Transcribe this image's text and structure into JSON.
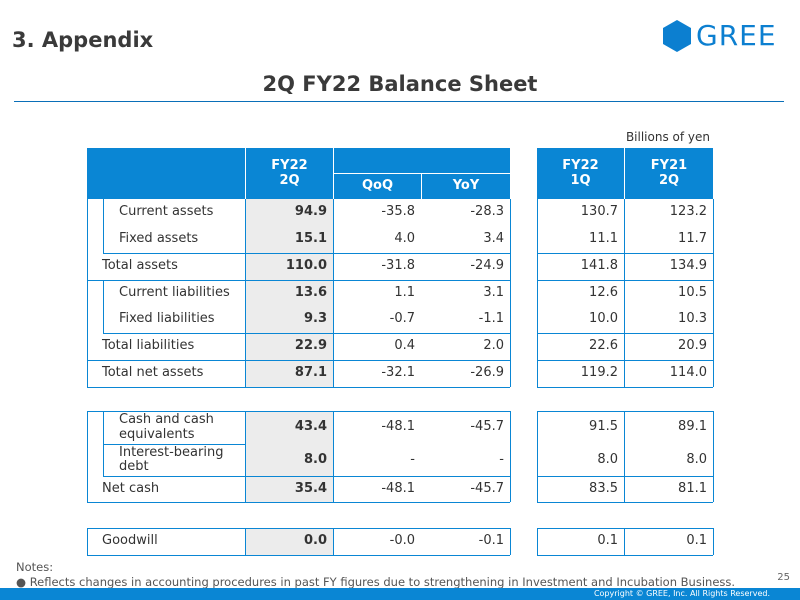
{
  "section_title": "3. Appendix",
  "logo_text": "GREE",
  "slide_title": "2Q FY22 Balance Sheet",
  "units": "Billions of yen",
  "headers": {
    "fy22_2q": "FY22\n2Q",
    "qoq": "QoQ",
    "yoy": "YoY",
    "fy22_1q": "FY22\n1Q",
    "fy21_2q": "FY21\n2Q"
  },
  "rows": [
    {
      "label": "Current assets",
      "fy22_2q": "94.9",
      "qoq": "-35.8",
      "yoy": "-28.3",
      "fy22_1q": "130.7",
      "fy21_2q": "123.2"
    },
    {
      "label": "Fixed assets",
      "fy22_2q": "15.1",
      "qoq": "4.0",
      "yoy": "3.4",
      "fy22_1q": "11.1",
      "fy21_2q": "11.7"
    },
    {
      "label": "Total assets",
      "fy22_2q": "110.0",
      "qoq": "-31.8",
      "yoy": "-24.9",
      "fy22_1q": "141.8",
      "fy21_2q": "134.9"
    },
    {
      "label": "Current liabilities",
      "fy22_2q": "13.6",
      "qoq": "1.1",
      "yoy": "3.1",
      "fy22_1q": "12.6",
      "fy21_2q": "10.5"
    },
    {
      "label": "Fixed liabilities",
      "fy22_2q": "9.3",
      "qoq": "-0.7",
      "yoy": "-1.1",
      "fy22_1q": "10.0",
      "fy21_2q": "10.3"
    },
    {
      "label": "Total liabilities",
      "fy22_2q": "22.9",
      "qoq": "0.4",
      "yoy": "2.0",
      "fy22_1q": "22.6",
      "fy21_2q": "20.9"
    },
    {
      "label": "Total net assets",
      "fy22_2q": "87.1",
      "qoq": "-32.1",
      "yoy": "-26.9",
      "fy22_1q": "119.2",
      "fy21_2q": "114.0"
    },
    {
      "label": "Cash and cash equivalents",
      "fy22_2q": "43.4",
      "qoq": "-48.1",
      "yoy": "-45.7",
      "fy22_1q": "91.5",
      "fy21_2q": "89.1"
    },
    {
      "label": "Interest-bearing debt",
      "fy22_2q": "8.0",
      "qoq": "-",
      "yoy": "-",
      "fy22_1q": "8.0",
      "fy21_2q": "8.0"
    },
    {
      "label": "Net cash",
      "fy22_2q": "35.4",
      "qoq": "-48.1",
      "yoy": "-45.7",
      "fy22_1q": "83.5",
      "fy21_2q": "81.1"
    },
    {
      "label": "Goodwill",
      "fy22_2q": "0.0",
      "qoq": "-0.0",
      "yoy": "-0.1",
      "fy22_1q": "0.1",
      "fy21_2q": "0.1"
    }
  ],
  "notes_title": "Notes:",
  "notes": [
    "● Reflects changes in accounting procedures in past FY figures due to strengthening in Investment and Incubation Business."
  ],
  "page_number": "25",
  "copyright": "Copyright © GREE, Inc. All Rights Reserved.",
  "colors": {
    "accent": "#0a86d4",
    "logo": "#0c7fd0",
    "highlight_col": "#ececec"
  }
}
